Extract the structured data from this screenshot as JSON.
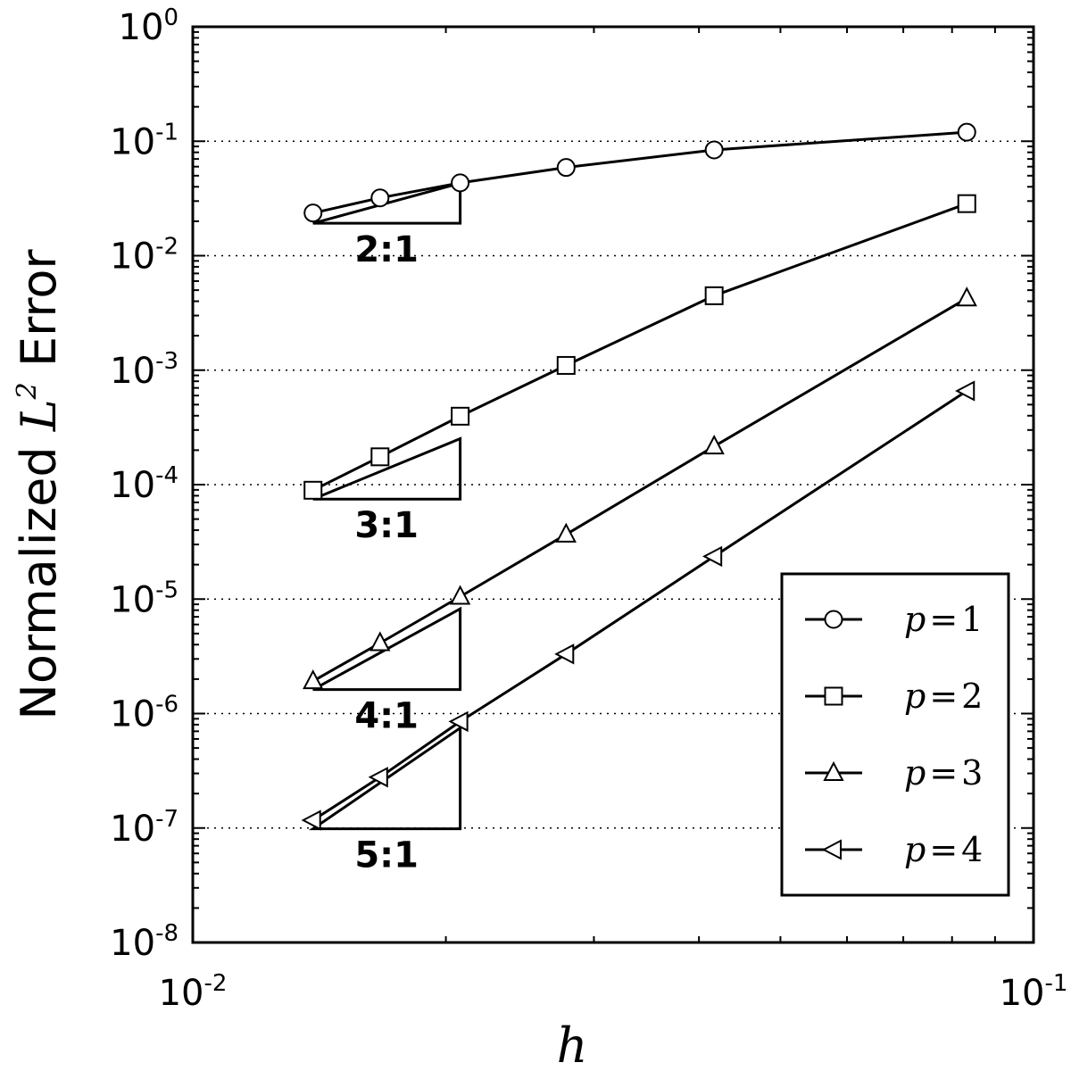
{
  "chart_data": {
    "type": "line",
    "title": "",
    "xscale": "log",
    "yscale": "log",
    "xlim": [
      0.01,
      0.1
    ],
    "ylim": [
      1e-08,
      1
    ],
    "xticks": [
      {
        "value": 0.01,
        "base": "10",
        "exp": "-2"
      },
      {
        "value": 0.1,
        "base": "10",
        "exp": "-1"
      }
    ],
    "yticks": [
      {
        "value": 1,
        "base": "10",
        "exp": "0"
      },
      {
        "value": 0.1,
        "base": "10",
        "exp": "-1"
      },
      {
        "value": 0.01,
        "base": "10",
        "exp": "-2"
      },
      {
        "value": 0.001,
        "base": "10",
        "exp": "-3"
      },
      {
        "value": 0.0001,
        "base": "10",
        "exp": "-4"
      },
      {
        "value": 1e-05,
        "base": "10",
        "exp": "-5"
      },
      {
        "value": 1e-06,
        "base": "10",
        "exp": "-6"
      },
      {
        "value": 1e-07,
        "base": "10",
        "exp": "-7"
      },
      {
        "value": 1e-08,
        "base": "10",
        "exp": "-8"
      }
    ],
    "grid": "horizontal-dotted",
    "xlabel": "h",
    "ylabel": {
      "prefix": "Normalized ",
      "symbol": "L",
      "exp": "2",
      "suffix": " Error"
    },
    "legend_position": "lower-right",
    "series": [
      {
        "name": "p=1",
        "label_var": "p",
        "label_eq": "=",
        "label_val": "1",
        "marker": "circle",
        "x": [
          0.0139,
          0.0167,
          0.0208,
          0.0278,
          0.0417,
          0.0833
        ],
        "y": [
          0.0236,
          0.032,
          0.0433,
          0.059,
          0.084,
          0.12
        ]
      },
      {
        "name": "p=2",
        "label_var": "p",
        "label_eq": "=",
        "label_val": "2",
        "marker": "square",
        "x": [
          0.0139,
          0.0167,
          0.0208,
          0.0278,
          0.0417,
          0.0833
        ],
        "y": [
          8.93e-05,
          0.000175,
          0.000396,
          0.0011,
          0.00447,
          0.0285
        ]
      },
      {
        "name": "p=3",
        "label_var": "p",
        "label_eq": "=",
        "label_val": "3",
        "marker": "triangle-up",
        "x": [
          0.0139,
          0.0167,
          0.0208,
          0.0278,
          0.0417,
          0.0833
        ],
        "y": [
          1.92e-06,
          4.13e-06,
          1.05e-05,
          3.67e-05,
          0.000216,
          0.00424
        ]
      },
      {
        "name": "p=4",
        "label_var": "p",
        "label_eq": "=",
        "label_val": "4",
        "marker": "triangle-left",
        "x": [
          0.0139,
          0.0167,
          0.0208,
          0.0278,
          0.0417,
          0.0833
        ],
        "y": [
          1.17e-07,
          2.78e-07,
          8.52e-07,
          3.31e-06,
          2.36e-05,
          0.000659
        ]
      }
    ],
    "slope_triangles": [
      {
        "label": "2:1",
        "x1": 0.0139,
        "x2": 0.0208,
        "y_base": 0.0192,
        "y_top": 0.043
      },
      {
        "label": "3:1",
        "x1": 0.0139,
        "x2": 0.0208,
        "y_base": 7.47e-05,
        "y_top": 0.000252
      },
      {
        "label": "4:1",
        "x1": 0.0139,
        "x2": 0.0208,
        "y_base": 1.62e-06,
        "y_top": 8.22e-06
      },
      {
        "label": "5:1",
        "x1": 0.0139,
        "x2": 0.0208,
        "y_base": 9.84e-08,
        "y_top": 7.48e-07
      }
    ]
  }
}
